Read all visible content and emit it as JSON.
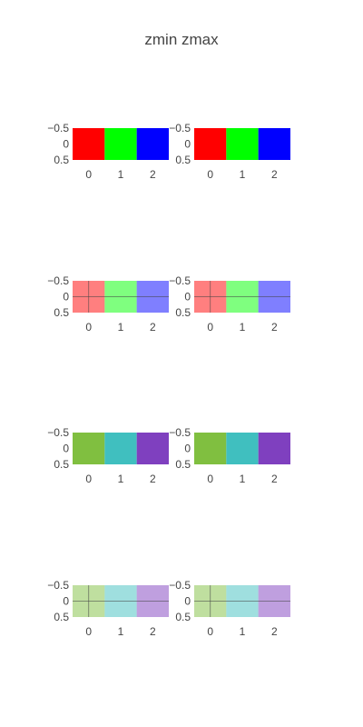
{
  "title": "zmin zmax",
  "chart_data": [
    {
      "type": "image",
      "row": 1,
      "col": 1,
      "pixels": [
        [
          "#ff0000",
          "#00ff00",
          "#0000ff"
        ]
      ],
      "opacity": 1,
      "x_ticks": [
        "0",
        "1",
        "2"
      ],
      "y_ticks": [
        "−0.5",
        "0",
        "0.5"
      ],
      "grid": false
    },
    {
      "type": "image",
      "row": 1,
      "col": 2,
      "pixels": [
        [
          "#ff0000",
          "#00ff00",
          "#0000ff"
        ]
      ],
      "opacity": 1,
      "x_ticks": [
        "0",
        "1",
        "2"
      ],
      "y_ticks": [
        "−0.5",
        "0",
        "0.5"
      ],
      "grid": false
    },
    {
      "type": "image",
      "row": 2,
      "col": 1,
      "pixels": [
        [
          "#ff0000",
          "#00ff00",
          "#0000ff"
        ]
      ],
      "opacity": 0.5,
      "x_ticks": [
        "0",
        "1",
        "2"
      ],
      "y_ticks": [
        "−0.5",
        "0",
        "0.5"
      ],
      "grid": true
    },
    {
      "type": "image",
      "row": 2,
      "col": 2,
      "pixels": [
        [
          "#ff0000",
          "#00ff00",
          "#0000ff"
        ]
      ],
      "opacity": 0.5,
      "x_ticks": [
        "0",
        "1",
        "2"
      ],
      "y_ticks": [
        "−0.5",
        "0",
        "0.5"
      ],
      "grid": true
    },
    {
      "type": "image",
      "row": 3,
      "col": 1,
      "pixels": [
        [
          "#80bf40",
          "#40bfbf",
          "#7f40bf"
        ]
      ],
      "opacity": 1,
      "x_ticks": [
        "0",
        "1",
        "2"
      ],
      "y_ticks": [
        "−0.5",
        "0",
        "0.5"
      ],
      "grid": false
    },
    {
      "type": "image",
      "row": 3,
      "col": 2,
      "pixels": [
        [
          "#80bf40",
          "#40bfbf",
          "#7f40bf"
        ]
      ],
      "opacity": 1,
      "x_ticks": [
        "0",
        "1",
        "2"
      ],
      "y_ticks": [
        "−0.5",
        "0",
        "0.5"
      ],
      "grid": false
    },
    {
      "type": "image",
      "row": 4,
      "col": 1,
      "pixels": [
        [
          "#80bf40",
          "#40bfbf",
          "#7f40bf"
        ]
      ],
      "opacity": 0.5,
      "x_ticks": [
        "0",
        "1",
        "2"
      ],
      "y_ticks": [
        "−0.5",
        "0",
        "0.5"
      ],
      "grid": true
    },
    {
      "type": "image",
      "row": 4,
      "col": 2,
      "pixels": [
        [
          "#80bf40",
          "#40bfbf",
          "#7f40bf"
        ]
      ],
      "opacity": 0.5,
      "x_ticks": [
        "0",
        "1",
        "2"
      ],
      "y_ticks": [
        "−0.5",
        "0",
        "0.5"
      ],
      "grid": true
    }
  ]
}
